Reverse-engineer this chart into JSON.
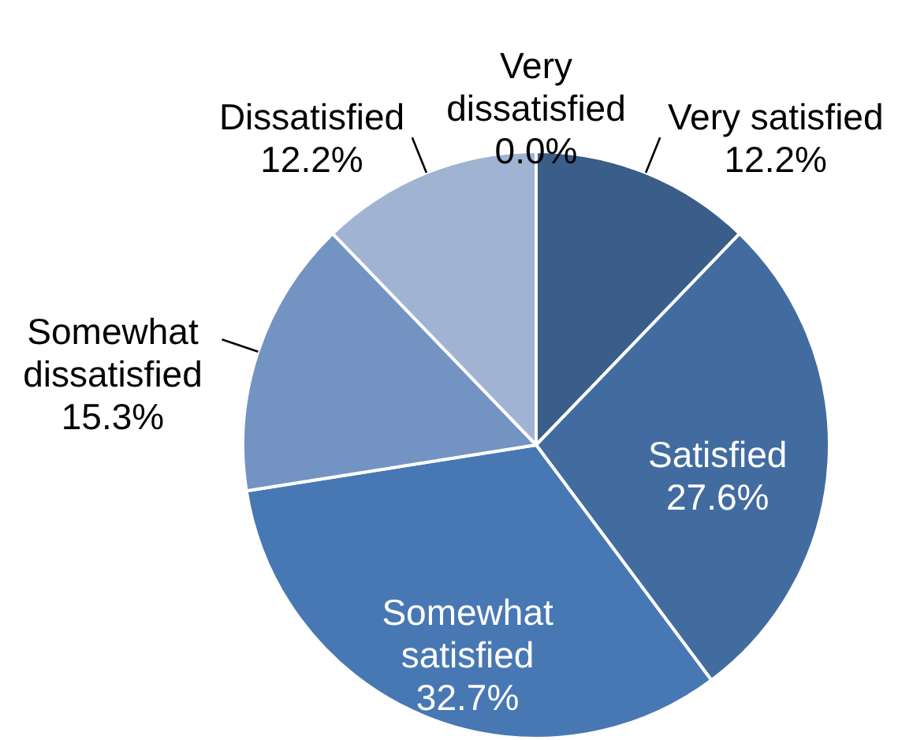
{
  "chart_data": {
    "type": "pie",
    "categories": [
      "Very satisfied",
      "Satisfied",
      "Somewhat satisfied",
      "Somewhat dissatisfied",
      "Dissatisfied",
      "Very dissatisfied"
    ],
    "values": [
      12.2,
      27.6,
      32.7,
      15.3,
      12.2,
      0.0
    ],
    "colors": [
      "#3a5d8a",
      "#426ca0",
      "#4878b3",
      "#7393c3",
      "#a1b3d3",
      "#c3cfe6"
    ],
    "value_labels": [
      "12.2%",
      "27.6%",
      "32.7%",
      "15.3%",
      "12.2%",
      "0.0%"
    ]
  }
}
